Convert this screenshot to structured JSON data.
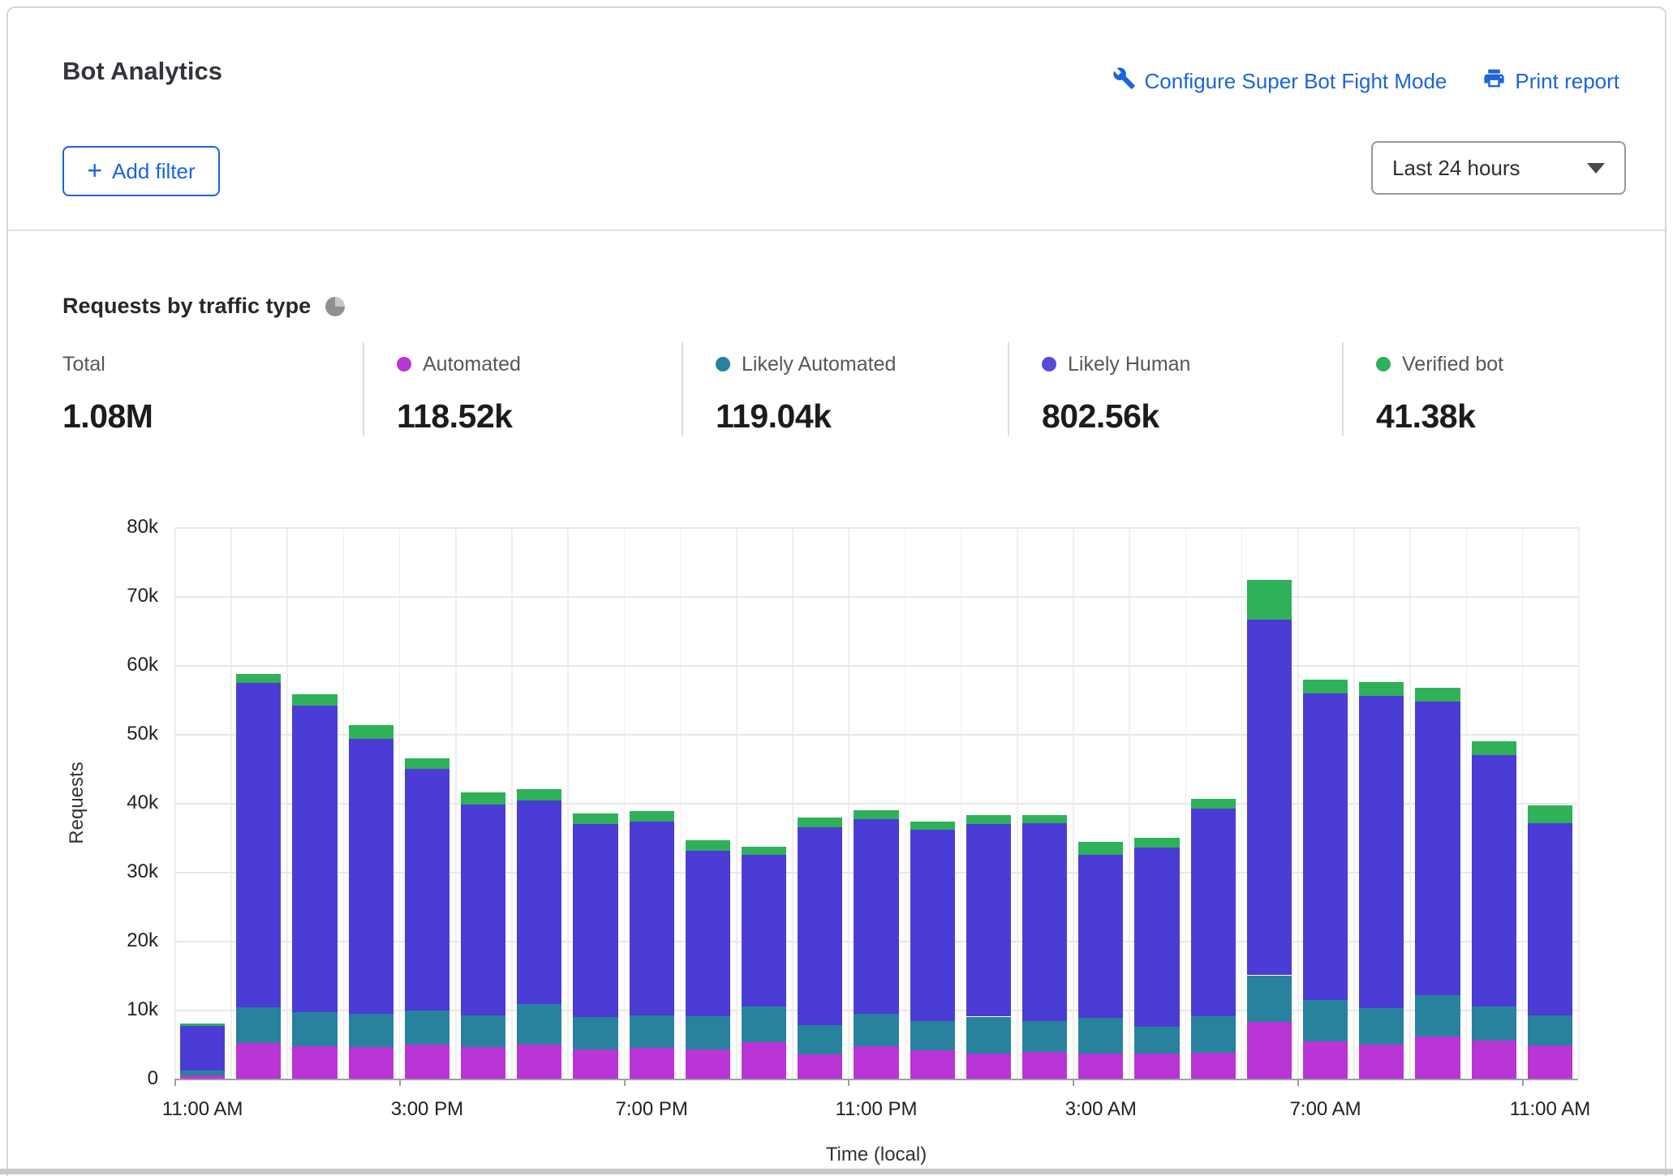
{
  "header": {
    "title": "Bot Analytics",
    "configure_link": "Configure Super Bot Fight Mode",
    "print_link": "Print report"
  },
  "toolbar": {
    "plus_icon": "+",
    "add_filter_label": "Add filter",
    "time_range_value": "Last 24 hours"
  },
  "section": {
    "title": "Requests by traffic type"
  },
  "stats": [
    {
      "label": "Total",
      "value": "1.08M"
    },
    {
      "label": "Automated",
      "value": "118.52k",
      "color": "#b935d6"
    },
    {
      "label": "Likely Automated",
      "value": "119.04k",
      "color": "#28829e"
    },
    {
      "label": "Likely Human",
      "value": "802.56k",
      "color": "#564bd8"
    },
    {
      "label": "Verified bot",
      "value": "41.38k",
      "color": "#2fb159"
    }
  ],
  "chart_data": {
    "type": "bar",
    "stacked": true,
    "title": "Requests by traffic type",
    "xlabel": "Time (local)",
    "ylabel": "Requests",
    "ylim": [
      0,
      80000
    ],
    "grid": true,
    "legend_position": "top",
    "ytick_labels": [
      "0",
      "10k",
      "20k",
      "30k",
      "40k",
      "50k",
      "60k",
      "70k",
      "80k"
    ],
    "xtick_labels": [
      "11:00 AM",
      "3:00 PM",
      "7:00 PM",
      "11:00 PM",
      "3:00 AM",
      "7:00 AM",
      "11:00 AM"
    ],
    "xtick_every": 4,
    "categories": [
      "11:00 AM",
      "12:00 PM",
      "1:00 PM",
      "2:00 PM",
      "3:00 PM",
      "4:00 PM",
      "5:00 PM",
      "6:00 PM",
      "7:00 PM",
      "8:00 PM",
      "9:00 PM",
      "10:00 PM",
      "11:00 PM",
      "12:00 AM",
      "1:00 AM",
      "2:00 AM",
      "3:00 AM",
      "4:00 AM",
      "5:00 AM",
      "6:00 AM",
      "7:00 AM",
      "8:00 AM",
      "9:00 AM",
      "10:00 AM",
      "11:00 AM"
    ],
    "series": [
      {
        "name": "Automated",
        "color": "#b935d6",
        "values": [
          500,
          5200,
          4700,
          4600,
          4900,
          4600,
          4900,
          4200,
          4500,
          4200,
          5300,
          3500,
          4700,
          4100,
          3700,
          3900,
          3600,
          3700,
          3800,
          8200,
          5400,
          4900,
          6100,
          5500,
          4800
        ]
      },
      {
        "name": "Likely Automated",
        "color": "#28829e",
        "values": [
          700,
          5100,
          5000,
          4800,
          5000,
          4600,
          5900,
          4800,
          4700,
          4900,
          5200,
          4300,
          4700,
          4300,
          5300,
          4500,
          5200,
          3800,
          5300,
          6800,
          6000,
          5300,
          6000,
          5000,
          4400
        ]
      },
      {
        "name": "Likely Human",
        "color": "#4a3cd4",
        "values": [
          6500,
          47100,
          44400,
          39900,
          35100,
          30600,
          29500,
          28000,
          28100,
          24000,
          22000,
          28700,
          28200,
          27700,
          27900,
          28700,
          23700,
          26000,
          30100,
          51600,
          44500,
          45300,
          42600,
          36400,
          27900
        ]
      },
      {
        "name": "Verified bot",
        "color": "#2fb159",
        "values": [
          300,
          1300,
          1700,
          2000,
          1500,
          1700,
          1700,
          1500,
          1500,
          1500,
          1200,
          1400,
          1300,
          1200,
          1300,
          1100,
          1800,
          1400,
          1400,
          5800,
          2000,
          2000,
          2000,
          2100,
          2500
        ]
      }
    ]
  }
}
